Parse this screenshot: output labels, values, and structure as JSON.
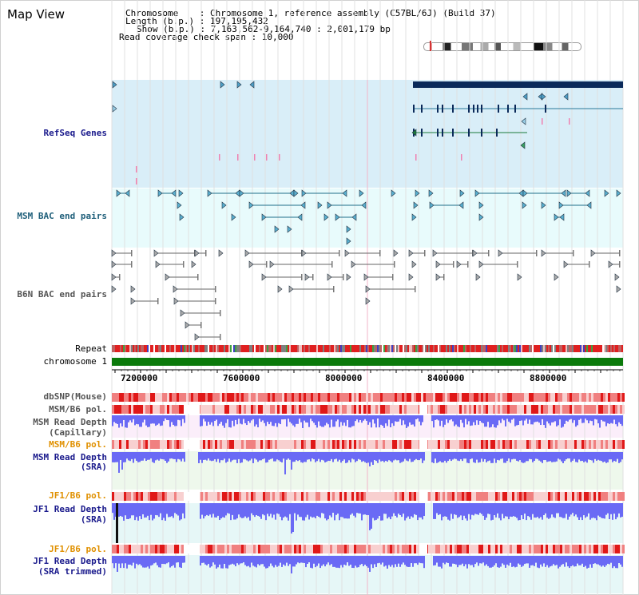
{
  "map_title": "Map View",
  "info": {
    "chromosome_line": "Chromosome    : Chromosome 1, reference assembly (C57BL/6J) (Build 37)",
    "length_line": "Length (b.p.) : 197,195,432",
    "show_line": "Show (b.p.) : 7,163,562-9,164,740 : 2,001,179 bp",
    "coverage_line": "Read coverage check span : 10,000"
  },
  "tracks": {
    "refseq": "RefSeq Genes",
    "msm_bac": "MSM BAC end pairs",
    "b6n_bac": "B6N BAC end pairs",
    "repeat": "Repeat",
    "chromosome": "chromosome 1",
    "dbsnp": "dbSNP(Mouse)",
    "msm_b6_pol_1": "MSM/B6 pol.",
    "msm_depth_cap_1": "MSM Read Depth",
    "msm_depth_cap_2": "(Capillary)",
    "msm_b6_pol_2": "MSM/B6 pol.",
    "msm_depth_sra_1": "MSM Read Depth",
    "msm_depth_sra_2": "(SRA)",
    "jf1_b6_pol_1": "JF1/B6 pol.",
    "jf1_depth_sra_1": "JF1 Read Depth",
    "jf1_depth_sra_2": "(SRA)",
    "jf1_b6_pol_2": "JF1/B6 pol.",
    "jf1_depth_trim_1": "JF1 Read Depth",
    "jf1_depth_trim_2": "(SRA trimmed)"
  },
  "axis_ticks": [
    "7200000",
    "7600000",
    "8000000",
    "8400000",
    "8800000"
  ],
  "colors": {
    "navy_label": "#1a1a8c",
    "teal_label": "#1f5f7a",
    "gray_label": "#555555",
    "orange_label": "#e09000",
    "refseq_bg": "#d9eef8",
    "msm_bac_bg": "#e8fbfc",
    "chrom_green": "#0b7a0b",
    "depth_blue": "#6a6af5",
    "snp_red": "#e83030"
  }
}
